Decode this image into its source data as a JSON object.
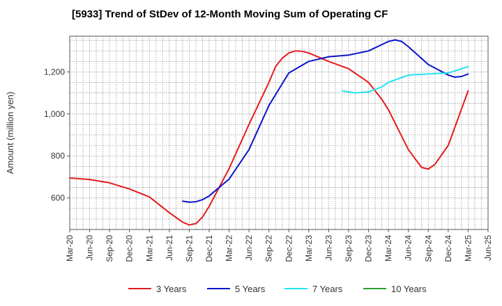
{
  "chart_data": {
    "type": "line",
    "title": "[5933]  Trend of StDev of 12-Month Moving Sum of Operating CF",
    "ylabel": "Amount (million yen)",
    "xlabel": "",
    "x_ticks": [
      "Mar-20",
      "Jun-20",
      "Sep-20",
      "Dec-20",
      "Mar-21",
      "Jun-21",
      "Sep-21",
      "Dec-21",
      "Mar-22",
      "Jun-22",
      "Sep-22",
      "Dec-22",
      "Mar-23",
      "Jun-23",
      "Sep-23",
      "Dec-23",
      "Mar-24",
      "Jun-24",
      "Sep-24",
      "Dec-24",
      "Mar-25",
      "Jun-25"
    ],
    "y_ticks": [
      "600",
      "800",
      "1,000",
      "1,200"
    ],
    "y_tick_values": [
      600,
      800,
      1000,
      1200
    ],
    "ylim": [
      450,
      1370
    ],
    "xlim": [
      "Mar-20",
      "Jun-25"
    ],
    "grid": true,
    "legend_position": "bottom",
    "series": [
      {
        "name": "3 Years",
        "color": "#e41a1c",
        "points": [
          [
            "Mar-20",
            695
          ],
          [
            "Jun-20",
            688
          ],
          [
            "Sep-20",
            672
          ],
          [
            "Dec-20",
            643
          ],
          [
            "Mar-21",
            605
          ],
          [
            "Jun-21",
            530
          ],
          [
            "Aug-21",
            485
          ],
          [
            "Sep-21",
            472
          ],
          [
            "Oct-21",
            478
          ],
          [
            "Nov-21",
            510
          ],
          [
            "Dec-21",
            560
          ],
          [
            "Jan-22",
            620
          ],
          [
            "Mar-22",
            740
          ],
          [
            "Jun-22",
            950
          ],
          [
            "Sep-22",
            1150
          ],
          [
            "Oct-22",
            1225
          ],
          [
            "Nov-22",
            1265
          ],
          [
            "Dec-22",
            1290
          ],
          [
            "Jan-23",
            1300
          ],
          [
            "Feb-23",
            1298
          ],
          [
            "Mar-23",
            1290
          ],
          [
            "Jun-23",
            1250
          ],
          [
            "Sep-23",
            1215
          ],
          [
            "Dec-23",
            1150
          ],
          [
            "Feb-24",
            1070
          ],
          [
            "Mar-24",
            1020
          ],
          [
            "Jun-24",
            830
          ],
          [
            "Aug-24",
            745
          ],
          [
            "Sep-24",
            738
          ],
          [
            "Oct-24",
            760
          ],
          [
            "Dec-24",
            850
          ],
          [
            "Mar-25",
            1110
          ]
        ]
      },
      {
        "name": "5 Years",
        "color": "#0a14c8",
        "points": [
          [
            "Aug-21",
            585
          ],
          [
            "Sep-21",
            580
          ],
          [
            "Oct-21",
            582
          ],
          [
            "Nov-21",
            592
          ],
          [
            "Dec-21",
            610
          ],
          [
            "Mar-22",
            690
          ],
          [
            "Jun-22",
            830
          ],
          [
            "Sep-22",
            1040
          ],
          [
            "Dec-22",
            1195
          ],
          [
            "Mar-23",
            1250
          ],
          [
            "Jun-23",
            1272
          ],
          [
            "Sep-23",
            1280
          ],
          [
            "Dec-23",
            1300
          ],
          [
            "Mar-24",
            1345
          ],
          [
            "Apr-24",
            1352
          ],
          [
            "May-24",
            1345
          ],
          [
            "Jun-24",
            1320
          ],
          [
            "Sep-24",
            1235
          ],
          [
            "Dec-24",
            1185
          ],
          [
            "Jan-25",
            1175
          ],
          [
            "Feb-25",
            1178
          ],
          [
            "Mar-25",
            1190
          ]
        ]
      },
      {
        "name": "7 Years",
        "color": "#22e5f0",
        "points": [
          [
            "Aug-23",
            1110
          ],
          [
            "Oct-23",
            1100
          ],
          [
            "Dec-23",
            1105
          ],
          [
            "Feb-24",
            1128
          ],
          [
            "Mar-24",
            1150
          ],
          [
            "Jun-24",
            1185
          ],
          [
            "Sep-24",
            1190
          ],
          [
            "Dec-24",
            1195
          ],
          [
            "Mar-25",
            1225
          ]
        ]
      },
      {
        "name": "10 Years",
        "color": "#2ca02c",
        "points": []
      }
    ]
  }
}
